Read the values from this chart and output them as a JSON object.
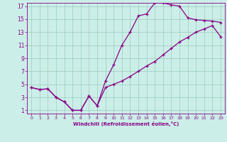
{
  "xlabel": "Windchill (Refroidissement éolien,°C)",
  "xlim": [
    -0.5,
    23.5
  ],
  "ylim": [
    0.5,
    17.5
  ],
  "xticks": [
    0,
    1,
    2,
    3,
    4,
    5,
    6,
    7,
    8,
    9,
    10,
    11,
    12,
    13,
    14,
    15,
    16,
    17,
    18,
    19,
    20,
    21,
    22,
    23
  ],
  "yticks": [
    1,
    3,
    5,
    7,
    9,
    11,
    13,
    15,
    17
  ],
  "line_color": "#880088",
  "bg_color": "#cceee8",
  "grid_color": "#99ccbb",
  "curve1_x": [
    0,
    1,
    2,
    3,
    4,
    5,
    6,
    7,
    8,
    9,
    10,
    11,
    12,
    13,
    14,
    15,
    16,
    17,
    18,
    19,
    20,
    21,
    22,
    23
  ],
  "curve1_y": [
    4.5,
    4.2,
    4.3,
    3.0,
    2.3,
    1.0,
    1.0,
    3.2,
    1.7,
    5.5,
    8.0,
    11.0,
    13.0,
    15.5,
    15.8,
    17.5,
    17.5,
    17.2,
    17.0,
    15.2,
    14.9,
    14.8,
    14.7,
    14.5
  ],
  "curve2_x": [
    0,
    1,
    2,
    3,
    4,
    5,
    6,
    7,
    8,
    9,
    10,
    11,
    12,
    13,
    14,
    15,
    16,
    17,
    18,
    19,
    20,
    21,
    22,
    23
  ],
  "curve2_y": [
    4.5,
    4.2,
    4.3,
    3.0,
    2.3,
    1.0,
    1.0,
    3.2,
    1.7,
    4.5,
    5.0,
    5.5,
    6.2,
    7.0,
    7.8,
    8.5,
    9.5,
    10.5,
    11.5,
    12.2,
    13.0,
    13.5,
    14.0,
    12.3
  ]
}
